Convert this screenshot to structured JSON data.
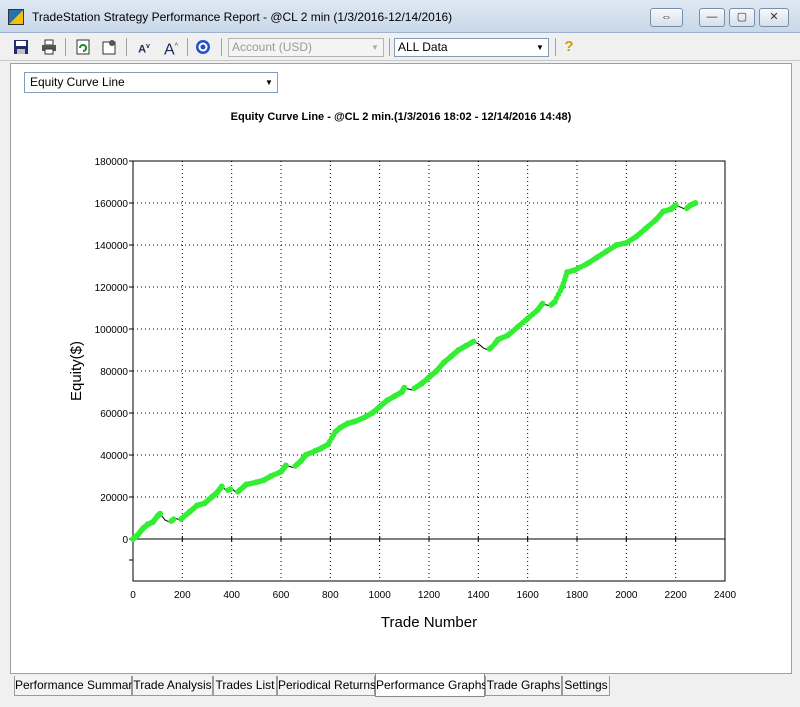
{
  "window": {
    "title": "TradeStation Strategy Performance Report - @CL 2 min (1/3/2016-12/14/2016)"
  },
  "toolbar": {
    "account_combo": "Account (USD)",
    "data_combo": "ALL Data",
    "font_small_label": "A",
    "font_large_label": "A",
    "help_label": "?"
  },
  "graph_select": {
    "value": "Equity Curve Line"
  },
  "tabs": [
    {
      "label": "Performance Summary",
      "active": false
    },
    {
      "label": "Trade Analysis",
      "active": false
    },
    {
      "label": "Trades List",
      "active": false
    },
    {
      "label": "Periodical Returns",
      "active": false
    },
    {
      "label": "Performance Graphs",
      "active": true
    },
    {
      "label": "Trade Graphs",
      "active": false
    },
    {
      "label": "Settings",
      "active": false
    }
  ],
  "chart_data": {
    "type": "line",
    "title": "Equity Curve Line - @CL 2 min.(1/3/2016 18:02 - 12/14/2016 14:48)",
    "xlabel": "Trade Number",
    "ylabel": "Equity($)",
    "xlim": [
      0,
      2400
    ],
    "ylim": [
      -20000,
      180000
    ],
    "x_ticks": [
      "0",
      "200",
      "400",
      "600",
      "800",
      "1000",
      "1200",
      "1400",
      "1600",
      "1800",
      "2000",
      "2200",
      "2400"
    ],
    "y_ticks": [
      "180000",
      "160000",
      "140000",
      "120000",
      "100000",
      "80000",
      "60000",
      "40000",
      "20000",
      "0"
    ],
    "grid": true,
    "line_color": "#000000",
    "new_high_marker_color": "#33ee33",
    "series": [
      {
        "values": [
          [
            0,
            0
          ],
          [
            20,
            2000
          ],
          [
            40,
            5000
          ],
          [
            60,
            7000
          ],
          [
            80,
            8000
          ],
          [
            100,
            11000
          ],
          [
            110,
            12000
          ],
          [
            130,
            9000
          ],
          [
            150,
            8000
          ],
          [
            170,
            10000
          ],
          [
            190,
            9000
          ],
          [
            210,
            11000
          ],
          [
            230,
            13000
          ],
          [
            260,
            16000
          ],
          [
            290,
            17000
          ],
          [
            320,
            20000
          ],
          [
            340,
            22000
          ],
          [
            360,
            25000
          ],
          [
            380,
            23000
          ],
          [
            400,
            24000
          ],
          [
            420,
            22000
          ],
          [
            440,
            24000
          ],
          [
            460,
            26000
          ],
          [
            500,
            27000
          ],
          [
            530,
            28000
          ],
          [
            560,
            30000
          ],
          [
            600,
            32000
          ],
          [
            620,
            35000
          ],
          [
            650,
            34000
          ],
          [
            680,
            37000
          ],
          [
            700,
            40000
          ],
          [
            740,
            42000
          ],
          [
            760,
            43000
          ],
          [
            790,
            45000
          ],
          [
            820,
            51000
          ],
          [
            840,
            53000
          ],
          [
            870,
            55000
          ],
          [
            900,
            56000
          ],
          [
            940,
            58000
          ],
          [
            970,
            60000
          ],
          [
            1000,
            63000
          ],
          [
            1030,
            66000
          ],
          [
            1060,
            68000
          ],
          [
            1090,
            70000
          ],
          [
            1100,
            72000
          ],
          [
            1130,
            71000
          ],
          [
            1170,
            74000
          ],
          [
            1200,
            77000
          ],
          [
            1230,
            80000
          ],
          [
            1260,
            84000
          ],
          [
            1290,
            87000
          ],
          [
            1320,
            90000
          ],
          [
            1350,
            92000
          ],
          [
            1380,
            94000
          ],
          [
            1400,
            93000
          ],
          [
            1420,
            91000
          ],
          [
            1440,
            90000
          ],
          [
            1460,
            92000
          ],
          [
            1480,
            95000
          ],
          [
            1520,
            97000
          ],
          [
            1560,
            101000
          ],
          [
            1600,
            105000
          ],
          [
            1640,
            109000
          ],
          [
            1660,
            112000
          ],
          [
            1690,
            111000
          ],
          [
            1710,
            113000
          ],
          [
            1740,
            120000
          ],
          [
            1760,
            127000
          ],
          [
            1790,
            128000
          ],
          [
            1840,
            131000
          ],
          [
            1880,
            134000
          ],
          [
            1920,
            137000
          ],
          [
            1960,
            140000
          ],
          [
            2000,
            141000
          ],
          [
            2040,
            144000
          ],
          [
            2080,
            148000
          ],
          [
            2120,
            152000
          ],
          [
            2150,
            156000
          ],
          [
            2180,
            157000
          ],
          [
            2200,
            159000
          ],
          [
            2220,
            158000
          ],
          [
            2240,
            157000
          ],
          [
            2260,
            159000
          ],
          [
            2280,
            160000
          ]
        ]
      }
    ]
  }
}
